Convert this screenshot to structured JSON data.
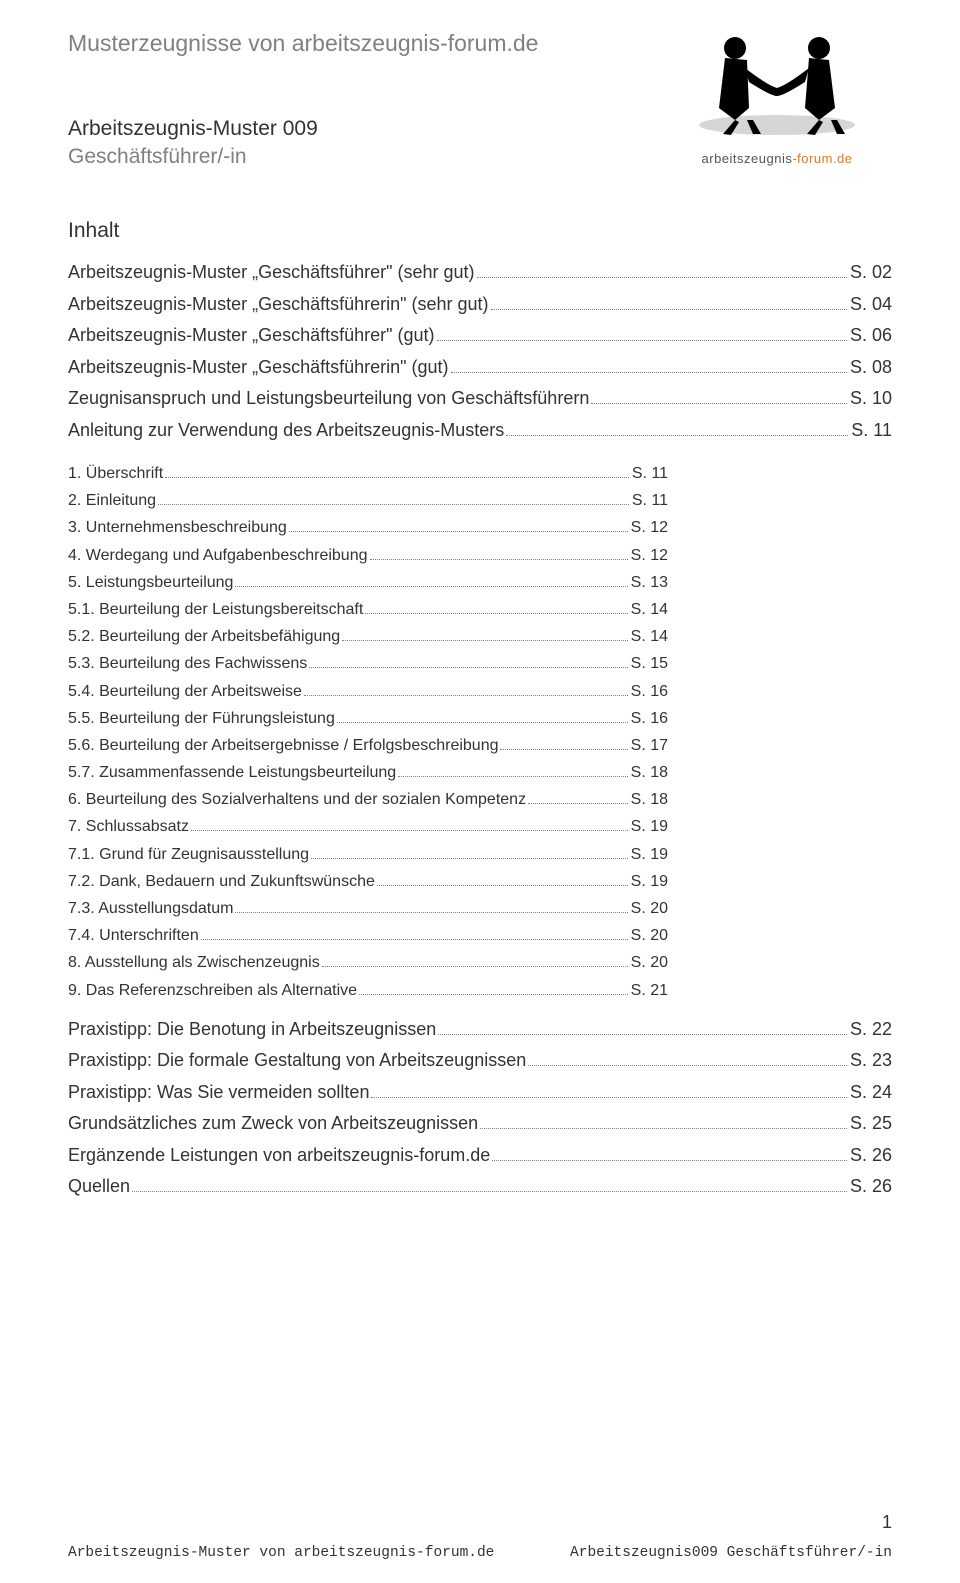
{
  "header_title": "Musterzeugnisse von arbeitszeugnis-forum.de",
  "logo_caption_1": "arbeitszeugnis",
  "logo_caption_2": "-forum.de",
  "sub_line1": "Arbeitszeugnis-Muster 009",
  "sub_line2": "Geschäftsführer/-in",
  "section_title": "Inhalt",
  "toc_main": [
    {
      "label": "Arbeitszeugnis-Muster „Geschäftsführer\" (sehr gut)",
      "page": "S. 02"
    },
    {
      "label": "Arbeitszeugnis-Muster „Geschäftsführerin\" (sehr gut)",
      "page": "S. 04"
    },
    {
      "label": "Arbeitszeugnis-Muster „Geschäftsführer\" (gut)",
      "page": "S. 06"
    },
    {
      "label": "Arbeitszeugnis-Muster „Geschäftsführerin\" (gut)",
      "page": "S. 08"
    },
    {
      "label": "Zeugnisanspruch und Leistungsbeurteilung von Geschäftsführern",
      "page": "S. 10"
    },
    {
      "label": "Anleitung zur Verwendung des Arbeitszeugnis-Musters",
      "page": "S. 11"
    }
  ],
  "toc_indent": [
    {
      "label": "1. Überschrift",
      "page": "S. 11"
    },
    {
      "label": "2. Einleitung",
      "page": "S. 11"
    },
    {
      "label": "3. Unternehmensbeschreibung",
      "page": "S. 12"
    },
    {
      "label": "4. Werdegang und Aufgabenbeschreibung",
      "page": "S. 12"
    },
    {
      "label": "5. Leistungsbeurteilung",
      "page": "S. 13"
    },
    {
      "label": "5.1. Beurteilung der Leistungsbereitschaft",
      "page": "S. 14"
    },
    {
      "label": "5.2. Beurteilung der Arbeitsbefähigung",
      "page": "S. 14"
    },
    {
      "label": "5.3. Beurteilung des Fachwissens",
      "page": "S. 15"
    },
    {
      "label": "5.4. Beurteilung der Arbeitsweise",
      "page": "S. 16"
    },
    {
      "label": "5.5. Beurteilung der Führungsleistung",
      "page": "S. 16"
    },
    {
      "label": "5.6. Beurteilung der Arbeitsergebnisse / Erfolgsbeschreibung",
      "page": "S. 17"
    },
    {
      "label": "5.7. Zusammenfassende Leistungsbeurteilung",
      "page": "S. 18"
    },
    {
      "label": "6. Beurteilung des Sozialverhaltens und der sozialen Kompetenz",
      "page": "S. 18"
    },
    {
      "label": "7. Schlussabsatz",
      "page": "S. 19"
    },
    {
      "label": "7.1. Grund für Zeugnisausstellung",
      "page": "S. 19"
    },
    {
      "label": "7.2. Dank, Bedauern und Zukunftswünsche",
      "page": "S. 19"
    },
    {
      "label": "7.3. Ausstellungsdatum",
      "page": "S. 20"
    },
    {
      "label": "7.4. Unterschriften",
      "page": "S. 20"
    },
    {
      "label": "8. Ausstellung als Zwischenzeugnis",
      "page": "S. 20"
    },
    {
      "label": "9. Das Referenzschreiben als Alternative",
      "page": "S. 21"
    }
  ],
  "toc_after": [
    {
      "label": "Praxistipp: Die Benotung in Arbeitszeugnissen",
      "page": "S. 22"
    },
    {
      "label": "Praxistipp: Die formale Gestaltung von Arbeitszeugnissen",
      "page": "S. 23"
    },
    {
      "label": "Praxistipp: Was Sie vermeiden sollten",
      "page": "S. 24"
    },
    {
      "label": "Grundsätzliches zum Zweck von Arbeitszeugnissen",
      "page": "S. 25"
    },
    {
      "label": "Ergänzende Leistungen von arbeitszeugnis-forum.de",
      "page": "S. 26"
    },
    {
      "label": "Quellen",
      "page": "S. 26"
    }
  ],
  "page_number": "1",
  "footer_left": "Arbeitszeugnis-Muster von arbeitszeugnis-forum.de",
  "footer_right": "Arbeitszeugnis009 Geschäftsführer/-in"
}
